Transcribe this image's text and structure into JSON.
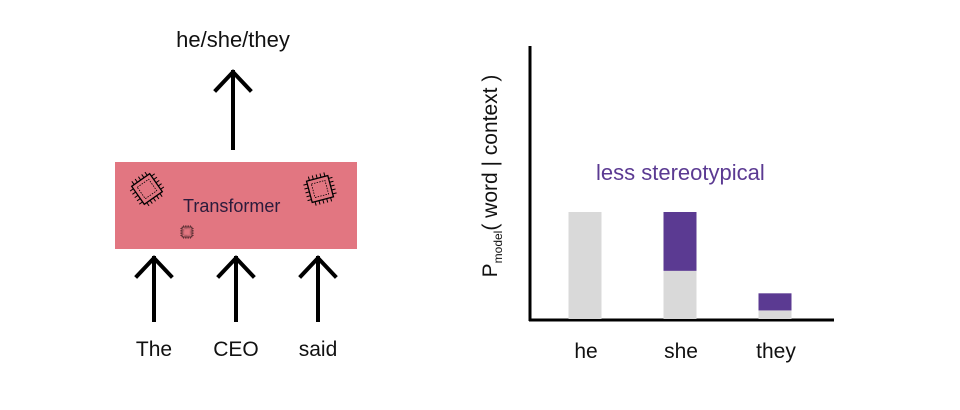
{
  "diagram": {
    "output_label": "he/she/they",
    "model_label": "Transformer",
    "input_tokens": [
      "The",
      "CEO",
      "said"
    ],
    "colors": {
      "transformer_box": "#e27681",
      "base_bar": "#d9d9d9",
      "added_bar": "#5b3a92",
      "annotation": "#5b3a92"
    },
    "icons": [
      "chip-icon",
      "chip-icon",
      "chip-icon"
    ]
  },
  "chart_data": {
    "type": "bar",
    "title": "",
    "xlabel": "",
    "ylabel_main": "P",
    "ylabel_sub": "model",
    "ylabel_rest": "( word | context )",
    "categories": [
      "he",
      "she",
      "they"
    ],
    "series": [
      {
        "values": [
          1.0,
          0.45,
          0.08
        ]
      },
      {
        "values": [
          0,
          0.55,
          0.16
        ]
      }
    ],
    "ylim": [
      0,
      2.0
    ],
    "annotation": "less stereotypical",
    "grid": false,
    "legend": "none"
  }
}
